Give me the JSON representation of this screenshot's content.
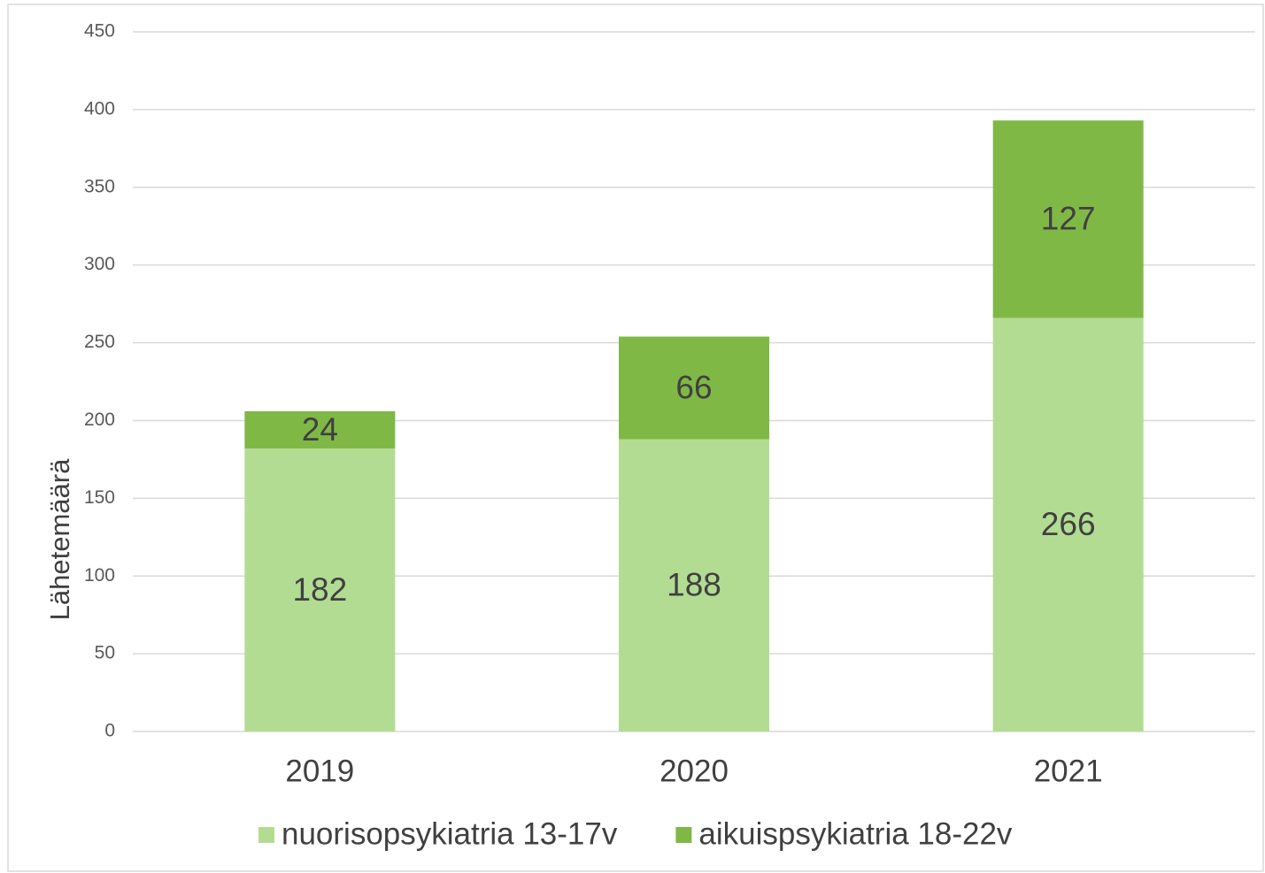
{
  "chart_data": {
    "type": "bar",
    "stacked": true,
    "y_label": "Lähetemäärä",
    "categories": [
      "2019",
      "2020",
      "2021"
    ],
    "series": [
      {
        "name": "nuorisopsykiatria 13-17v",
        "color": "#b3dc93",
        "values": [
          182,
          188,
          266
        ]
      },
      {
        "name": "aikuispsykiatria 18-22v",
        "color": "#80b846",
        "values": [
          24,
          66,
          127
        ]
      }
    ],
    "ylim": [
      0,
      450
    ],
    "yticks": [
      0,
      50,
      100,
      150,
      200,
      250,
      300,
      350,
      400,
      450
    ],
    "grid": true,
    "legend": "bottom"
  }
}
